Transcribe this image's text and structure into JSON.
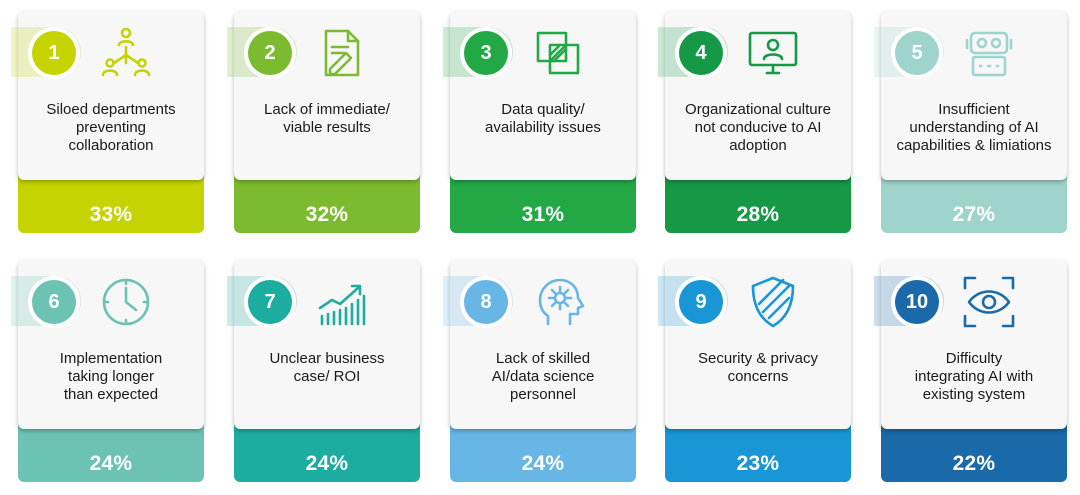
{
  "cards": [
    {
      "number": "1",
      "label": "Siloed departments\npreventing\ncollaboration",
      "percent": "33%",
      "color": "#c5d400",
      "icon": "org-hierarchy-icon"
    },
    {
      "number": "2",
      "label": "Lack of immediate/\nviable results",
      "percent": "32%",
      "color": "#7cbb2f",
      "icon": "document-pencil-icon"
    },
    {
      "number": "3",
      "label": "Data quality/\navailability issues",
      "percent": "31%",
      "color": "#22a845",
      "icon": "layered-squares-icon"
    },
    {
      "number": "4",
      "label": "Organizational culture\nnot conducive to AI\nadoption",
      "percent": "28%",
      "color": "#159947",
      "icon": "monitor-user-icon"
    },
    {
      "number": "5",
      "label": "Insufficient\nunderstanding of AI\ncapabilities & limiations",
      "percent": "27%",
      "color": "#9ed4cc",
      "icon": "robot-icon"
    },
    {
      "number": "6",
      "label": "Implementation\ntaking longer\nthan expected",
      "percent": "24%",
      "color": "#6cc3b3",
      "icon": "clock-icon"
    },
    {
      "number": "7",
      "label": "Unclear business\ncase/ ROI",
      "percent": "24%",
      "color": "#1cada0",
      "icon": "growth-chart-icon"
    },
    {
      "number": "8",
      "label": "Lack of skilled\nAI/data science\npersonnel",
      "percent": "24%",
      "color": "#68b6e6",
      "icon": "head-gear-icon"
    },
    {
      "number": "9",
      "label": "Security & privacy\nconcerns",
      "percent": "23%",
      "color": "#1996d6",
      "icon": "shield-icon"
    },
    {
      "number": "10",
      "label": "Difficulty\nintegrating AI with\nexisting system",
      "percent": "22%",
      "color": "#1a69a8",
      "icon": "eye-scan-icon"
    }
  ]
}
